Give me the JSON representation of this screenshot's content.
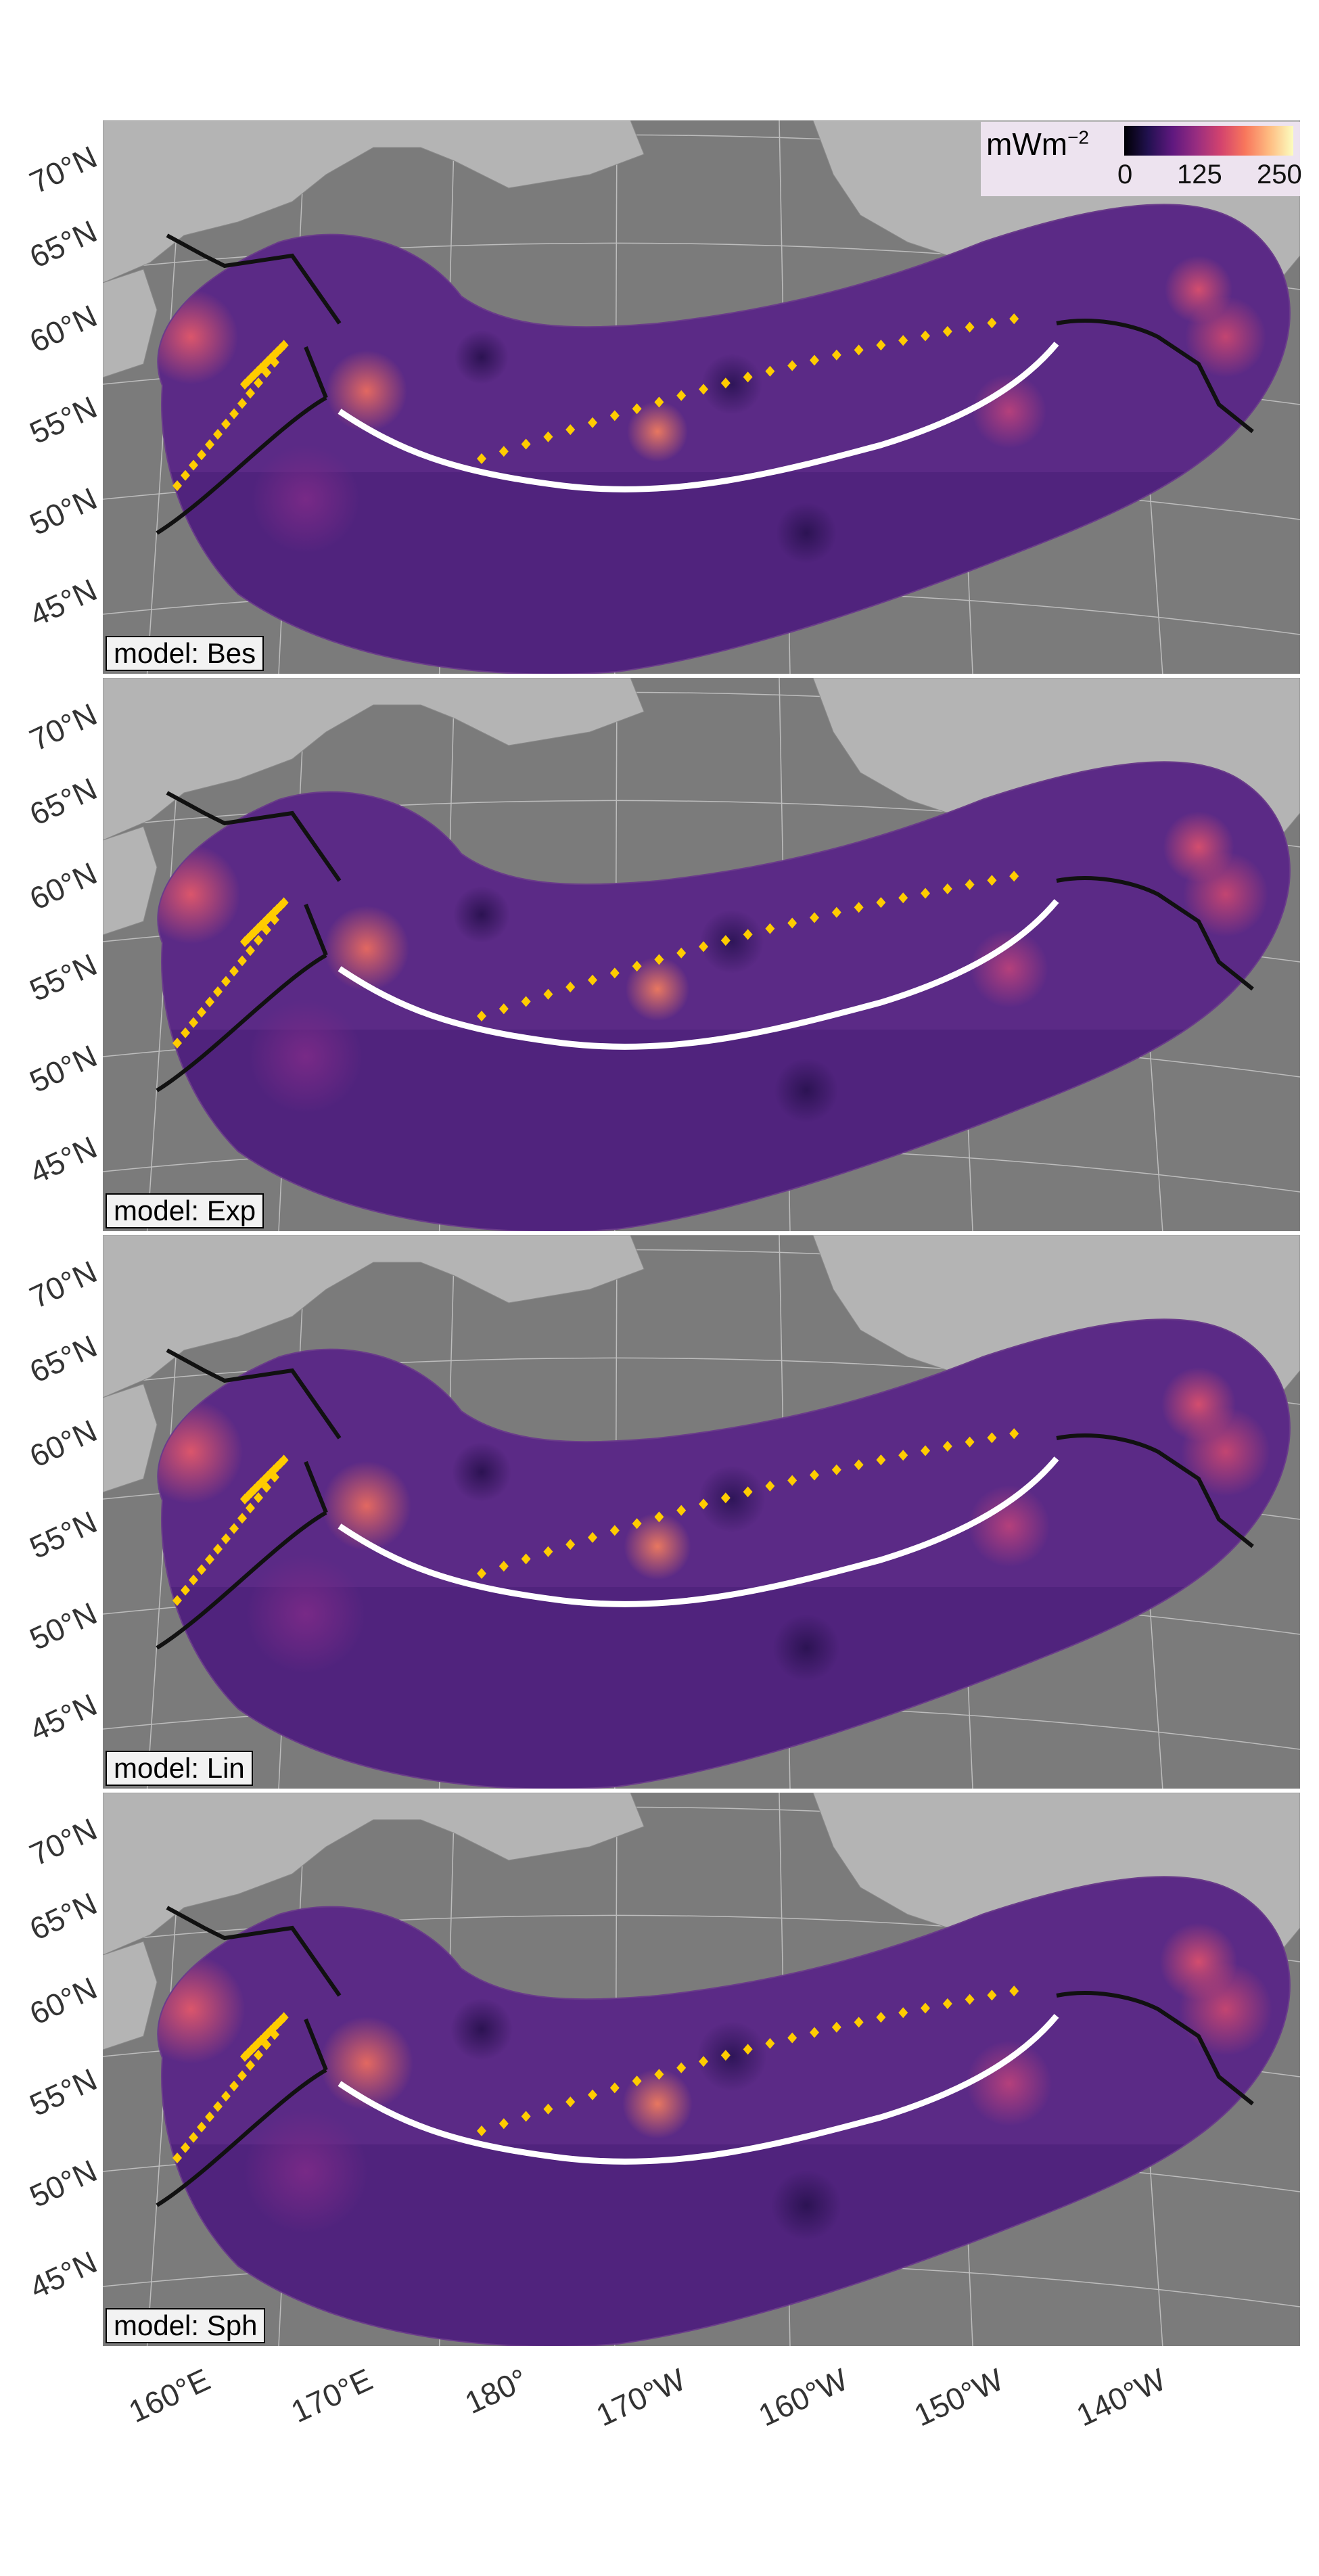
{
  "legend": {
    "title": "mWm",
    "title_exponent": "−2",
    "ticks": [
      "0",
      "125",
      "250"
    ],
    "colormap": "magma"
  },
  "y_axis_labels": [
    "70°N",
    "65°N",
    "60°N",
    "55°N",
    "50°N",
    "45°N"
  ],
  "x_axis_labels": [
    "160°E",
    "170°E",
    "180°",
    "170°W",
    "160°W",
    "150°W",
    "140°W"
  ],
  "panels": [
    {
      "label": "model: Bes"
    },
    {
      "label": "model: Exp"
    },
    {
      "label": "model: Lin"
    },
    {
      "label": "model: Sph"
    }
  ],
  "colors": {
    "ocean": "#7b7b7b",
    "land": "#b4b4b4",
    "field_base": "#5b2a86",
    "volcanoes": "#ffcc00",
    "trench": "#ffffff",
    "plate_boundary": "#111111"
  }
}
